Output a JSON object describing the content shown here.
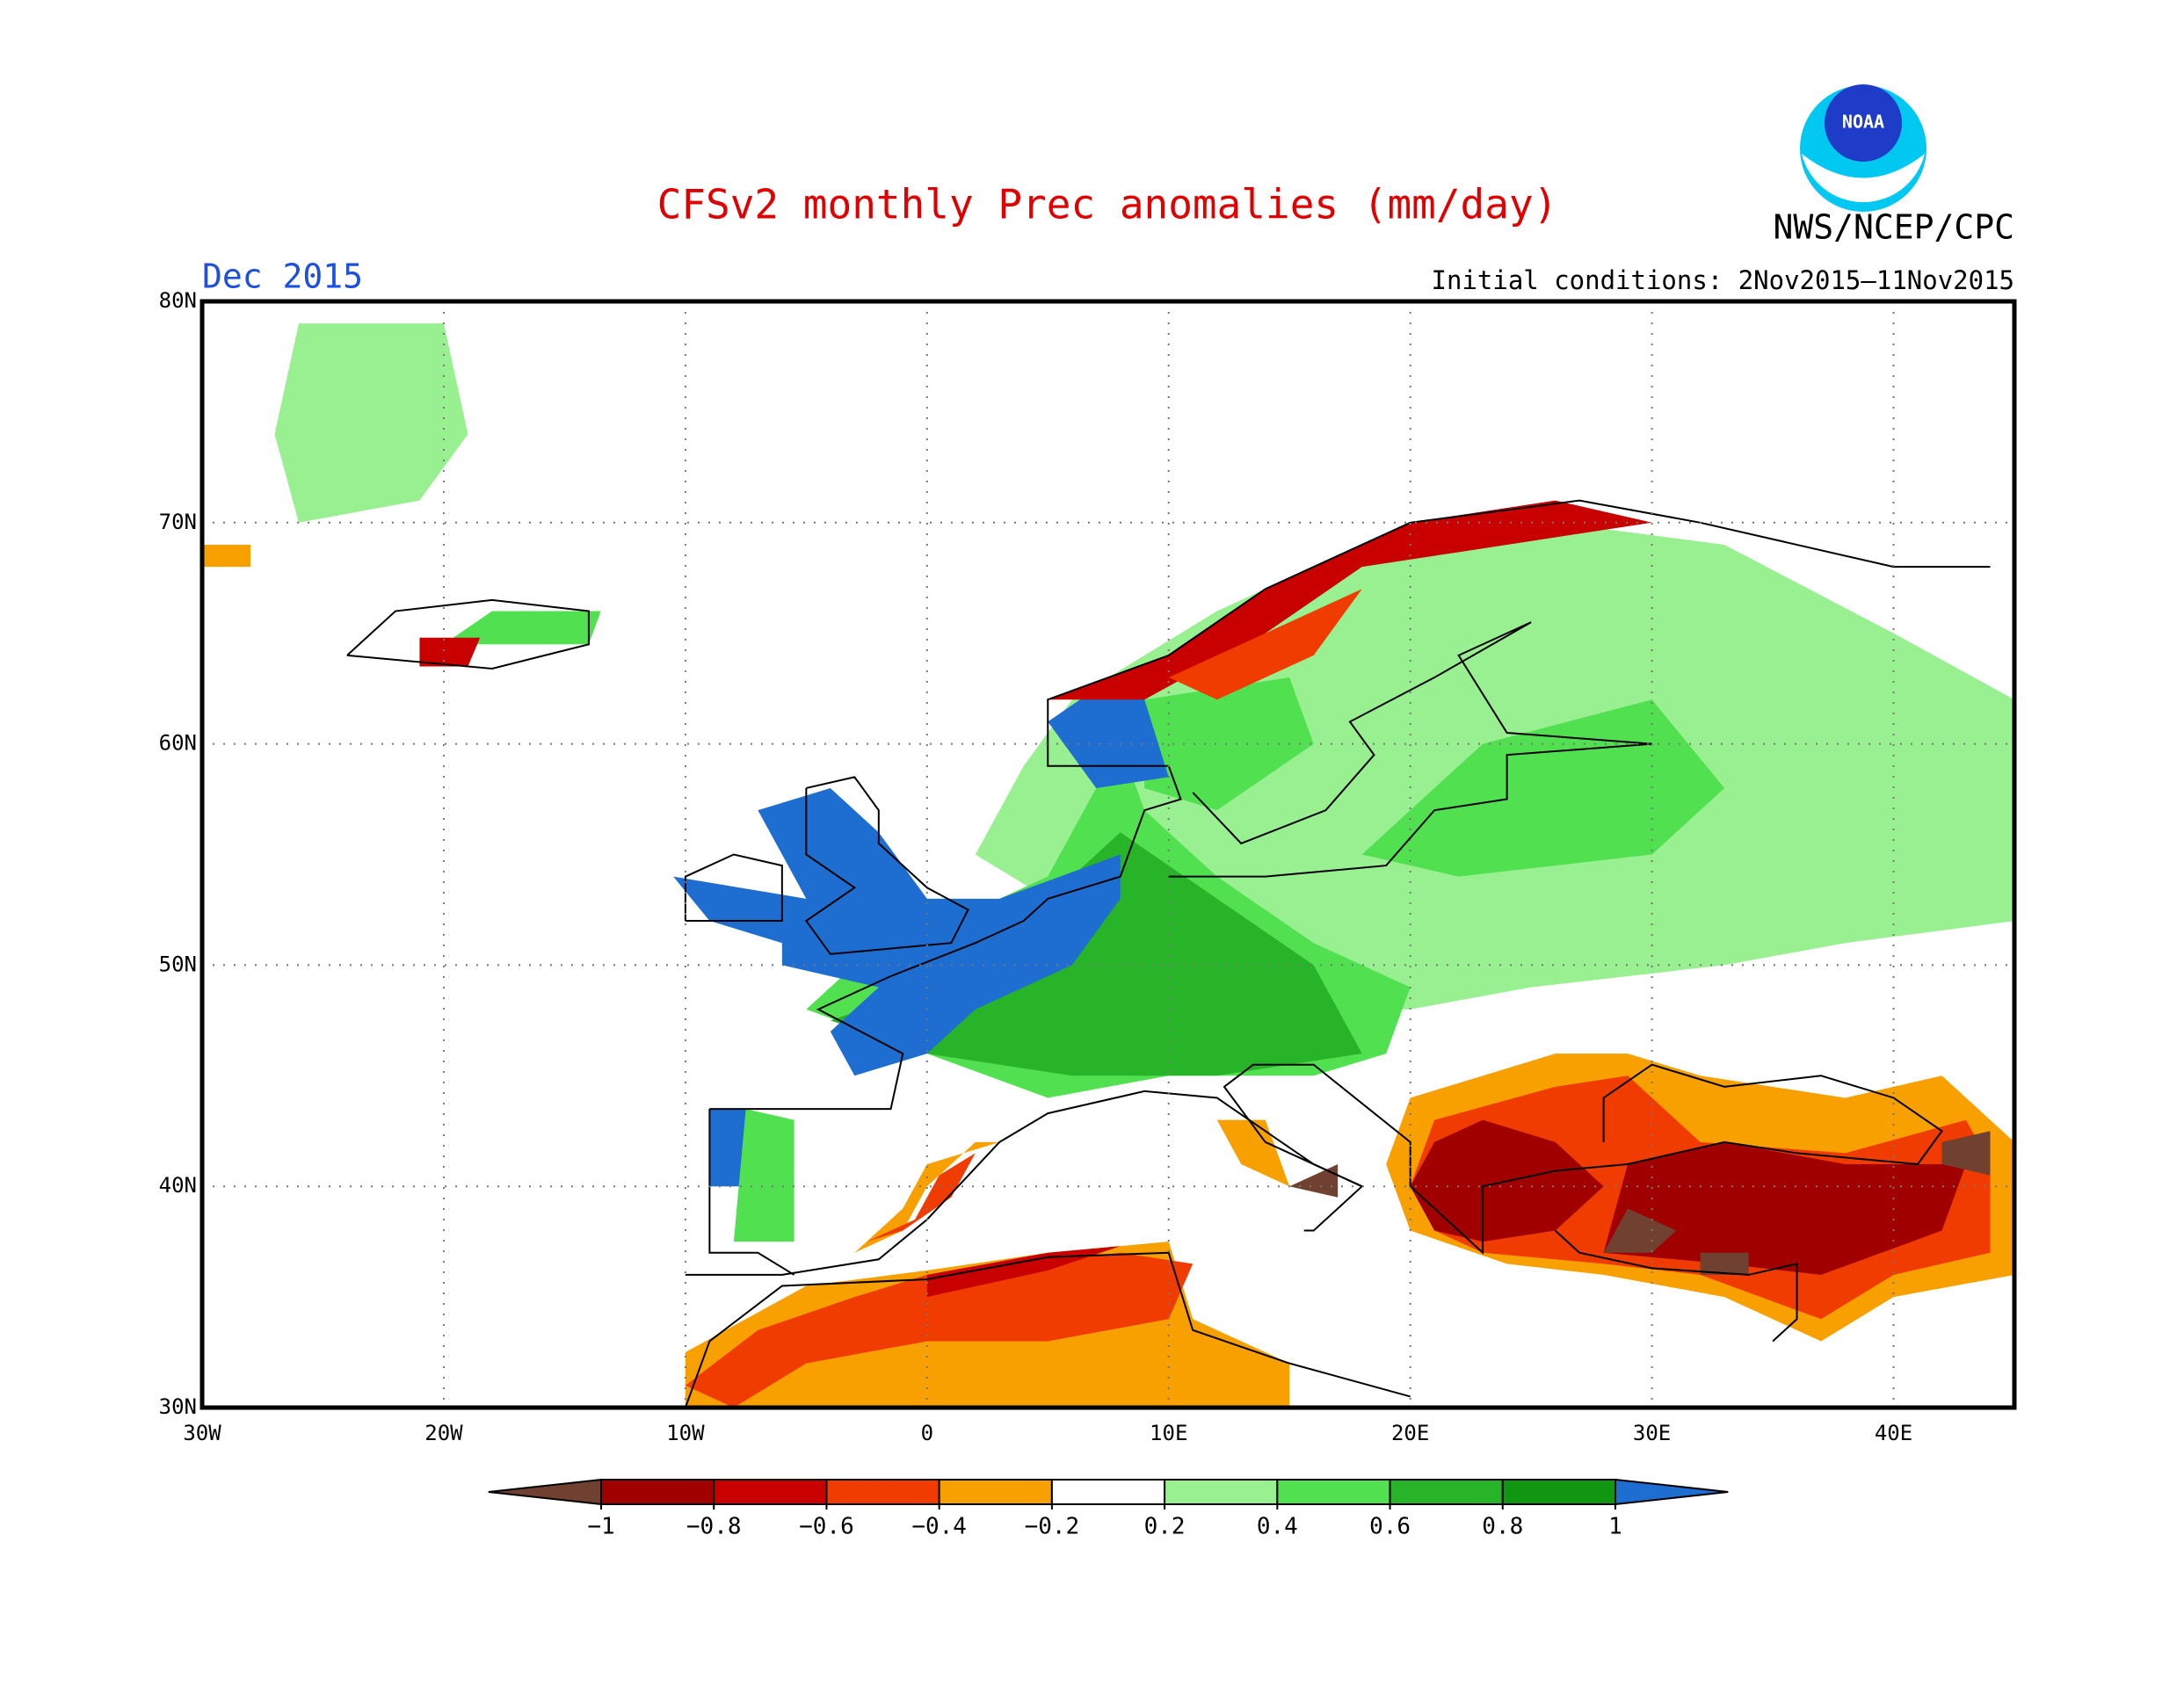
{
  "header": {
    "title": "CFSv2 monthly Prec anomalies (mm/day)",
    "month": "Dec 2015",
    "source": "NWS/NCEP/CPC",
    "logo_text": "NOAA",
    "initial_conditions": "Initial conditions: 2Nov2015–11Nov2015"
  },
  "map": {
    "lonlim": [
      -30,
      45
    ],
    "latlim": [
      30,
      80
    ],
    "lat_ticks": [
      {
        "value": 30,
        "label": "30N"
      },
      {
        "value": 40,
        "label": "40N"
      },
      {
        "value": 50,
        "label": "50N"
      },
      {
        "value": 60,
        "label": "60N"
      },
      {
        "value": 70,
        "label": "70N"
      },
      {
        "value": 80,
        "label": "80N"
      }
    ],
    "lon_ticks": [
      {
        "value": -30,
        "label": "30W"
      },
      {
        "value": -20,
        "label": "20W"
      },
      {
        "value": -10,
        "label": "10W"
      },
      {
        "value": 0,
        "label": "0"
      },
      {
        "value": 10,
        "label": "10E"
      },
      {
        "value": 20,
        "label": "20E"
      },
      {
        "value": 30,
        "label": "30E"
      },
      {
        "value": 40,
        "label": "40E"
      }
    ]
  },
  "colorbar": {
    "ticks": [
      {
        "value": -1,
        "label": "−1"
      },
      {
        "value": -0.8,
        "label": "−0.8"
      },
      {
        "value": -0.6,
        "label": "−0.6"
      },
      {
        "value": -0.4,
        "label": "−0.4"
      },
      {
        "value": -0.2,
        "label": "−0.2"
      },
      {
        "value": 0.2,
        "label": "0.2"
      },
      {
        "value": 0.4,
        "label": "0.4"
      },
      {
        "value": 0.6,
        "label": "0.6"
      },
      {
        "value": 0.8,
        "label": "0.8"
      },
      {
        "value": 1,
        "label": "1"
      }
    ],
    "colors": [
      "#704030",
      "#a00000",
      "#c80000",
      "#f03c00",
      "#f8a000",
      "#ffffff",
      "#98f090",
      "#50e050",
      "#28b428",
      "#109610",
      "#1e6ed2"
    ]
  }
}
